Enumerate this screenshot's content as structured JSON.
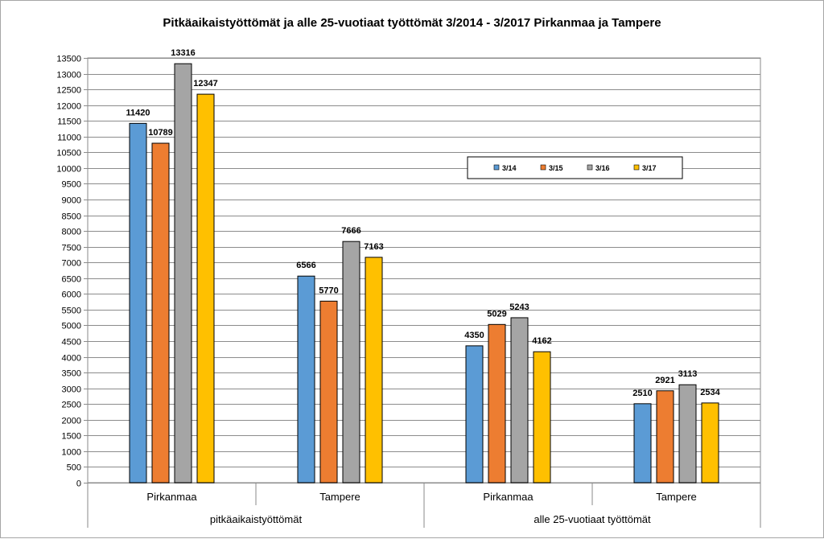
{
  "chart_data": {
    "type": "bar",
    "title": "Pitkäaikaistyöttömät ja alle 25-vuotiaat työttömät 3/2014 - 3/2017 Pirkanmaa ja Tampere",
    "categories": [
      "Pirkanmaa",
      "Tampere",
      "Pirkanmaa",
      "Tampere"
    ],
    "groups": [
      {
        "label": "pitkäaikaistyöttömät",
        "categories": [
          "Pirkanmaa",
          "Tampere"
        ]
      },
      {
        "label": "alle 25-vuotiaat työttömät",
        "categories": [
          "Pirkanmaa",
          "Tampere"
        ]
      }
    ],
    "series": [
      {
        "name": "3/14",
        "color": "#5b9bd5",
        "values": [
          11420,
          6566,
          4350,
          2510
        ]
      },
      {
        "name": "3/15",
        "color": "#ed7d31",
        "values": [
          10789,
          5770,
          5029,
          2921
        ]
      },
      {
        "name": "3/16",
        "color": "#a5a5a5",
        "values": [
          13316,
          7666,
          5243,
          3113
        ]
      },
      {
        "name": "3/17",
        "color": "#ffc000",
        "values": [
          12347,
          7163,
          4162,
          2534
        ]
      }
    ],
    "ylim": [
      0,
      13500
    ],
    "ytick_step": 500,
    "grid": true,
    "legend_position": "right-middle",
    "data_labels": true
  }
}
